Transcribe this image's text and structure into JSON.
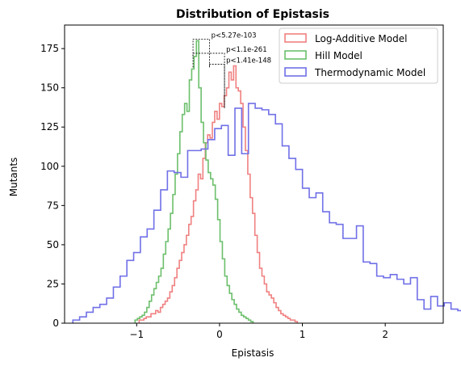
{
  "chart_data": {
    "type": "histogram",
    "title": "Distribution of Epistasis",
    "xlabel": "Epistasis",
    "ylabel": "Mutants",
    "xlim": [
      -1.87,
      2.7
    ],
    "ylim": [
      0,
      190
    ],
    "xticks": [
      -1,
      0,
      1,
      2
    ],
    "xtick_labels": [
      "−1",
      "0",
      "1",
      "2"
    ],
    "yticks": [
      0,
      25,
      50,
      75,
      100,
      125,
      150,
      175
    ],
    "grid": false,
    "legend_position": "top-right",
    "series": [
      {
        "name": "Log-Additive Model",
        "color": "#f08080",
        "bin_start": -0.97,
        "bin_width": 0.0285,
        "values": [
          2,
          2,
          3,
          4,
          4,
          6,
          6,
          8,
          7,
          10,
          12,
          14,
          16,
          20,
          24,
          29,
          35,
          40,
          45,
          50,
          56,
          63,
          68,
          78,
          85,
          95,
          92,
          105,
          115,
          120,
          118,
          128,
          135,
          130,
          140,
          138,
          145,
          150,
          160,
          155,
          164,
          150,
          148,
          140,
          125,
          110,
          95,
          80,
          70,
          56,
          45,
          35,
          30,
          25,
          20,
          18,
          16,
          13,
          10,
          8,
          6,
          5,
          4,
          3,
          2,
          2,
          1
        ]
      },
      {
        "name": "Hill Model",
        "color": "#6cbf6c",
        "bin_start": -1.02,
        "bin_width": 0.0285,
        "values": [
          2,
          3,
          4,
          5,
          7,
          10,
          14,
          18,
          22,
          26,
          30,
          35,
          44,
          52,
          60,
          70,
          82,
          95,
          108,
          122,
          133,
          140,
          135,
          155,
          162,
          170,
          180,
          150,
          128,
          115,
          104,
          96,
          92,
          88,
          79,
          66,
          52,
          41,
          30,
          24,
          19,
          15,
          12,
          9,
          7,
          5,
          4,
          3,
          2,
          1
        ]
      },
      {
        "name": "Thermodynamic Model",
        "color": "#7070e8",
        "bin_start": -1.77,
        "bin_width": 0.0815,
        "values": [
          2,
          4,
          7,
          10,
          12,
          16,
          23,
          30,
          40,
          45,
          55,
          60,
          72,
          85,
          97,
          96,
          93,
          110,
          110,
          111,
          117,
          124,
          126,
          107,
          137,
          108,
          140,
          137,
          136,
          133,
          127,
          113,
          105,
          98,
          86,
          80,
          83,
          71,
          64,
          63,
          54,
          54,
          62,
          39,
          38,
          30,
          29,
          31,
          28,
          25,
          29,
          15,
          9,
          17,
          11,
          13,
          9,
          8,
          4,
          6,
          3,
          5,
          4
        ]
      }
    ],
    "annotations": [
      {
        "label": "p<5.27e-103",
        "x_left": -0.32,
        "x_right": -0.12,
        "y_top": 181,
        "y_low_left": 170,
        "y_low_right": 163
      },
      {
        "label": "p<1.1e-261",
        "x_left": -0.32,
        "x_right": 0.06,
        "y_top": 172,
        "y_low_left": 163,
        "y_low_right": 137
      },
      {
        "label": "p<1.41e-148",
        "x_left": -0.12,
        "x_right": 0.06,
        "y_top": 165,
        "y_low_left": 163,
        "y_low_right": 137
      }
    ]
  }
}
